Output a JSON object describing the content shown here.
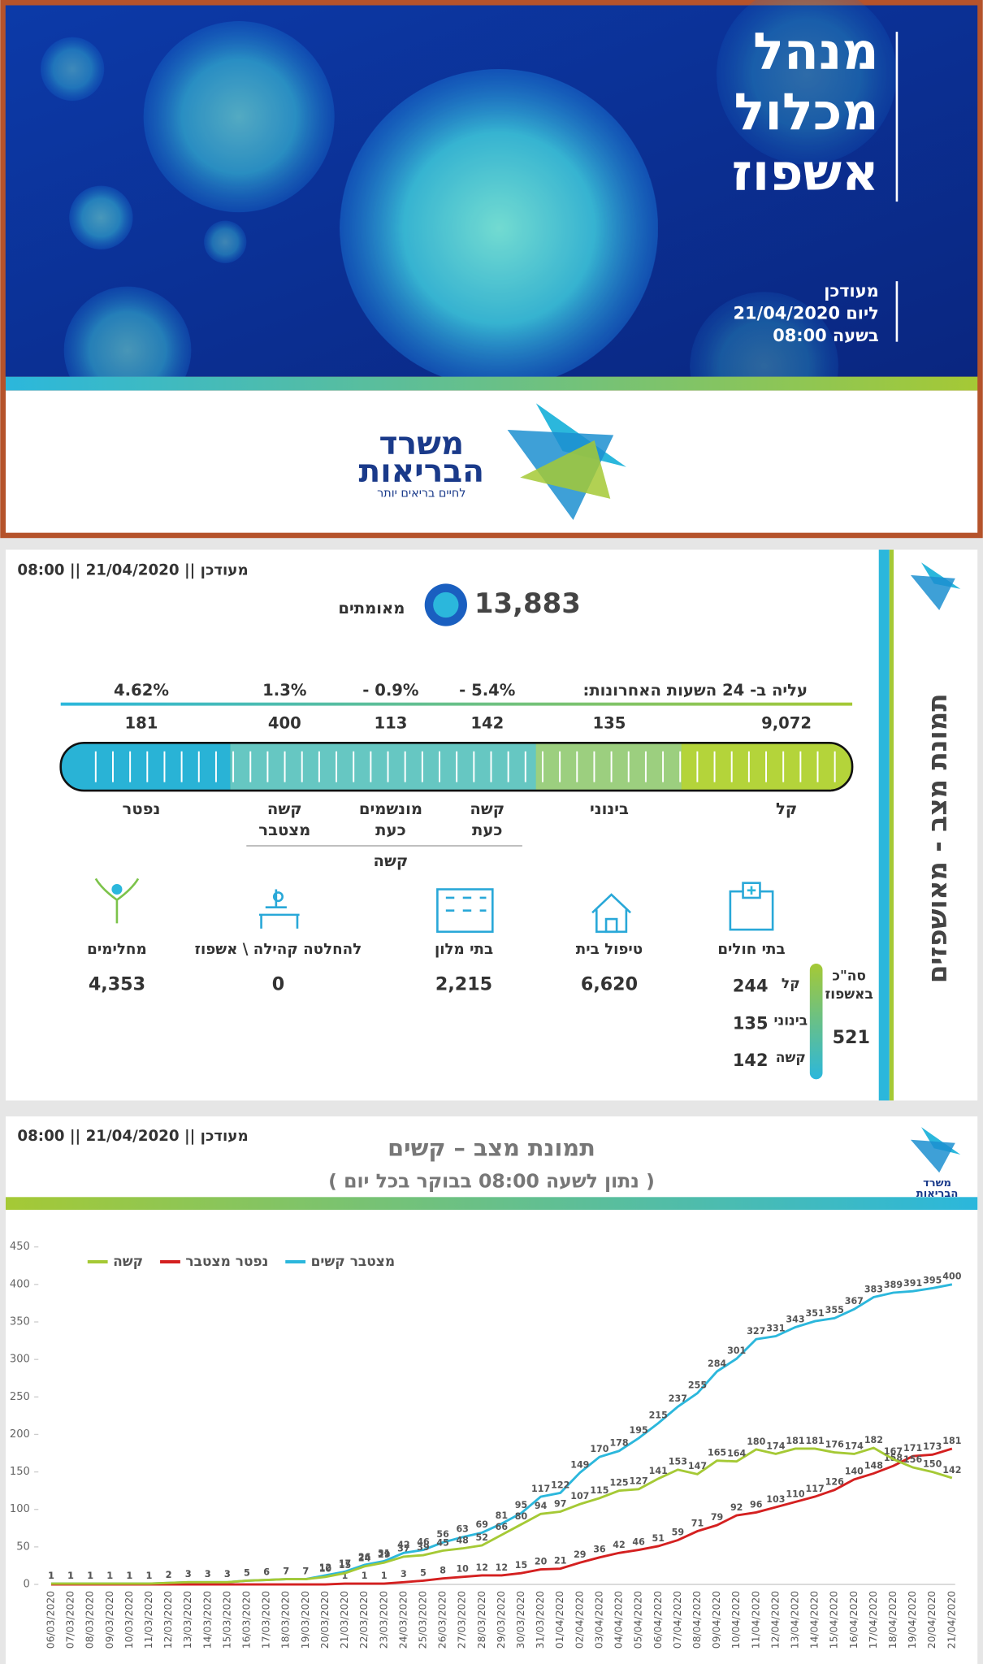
{
  "cover": {
    "title_lines": [
      "מנהל",
      "מכלול",
      "אשפוז"
    ],
    "updated_lines": [
      "מעודכן",
      "ליום 21/04/2020",
      "בשעה 08:00"
    ],
    "ministry_lines": [
      "משרד",
      "הבריאות"
    ],
    "tagline": "לחיים בריאים יותר"
  },
  "status": {
    "updated": "מעודכן || 21/04/2020 || 08:00",
    "side_title": "תמונת מצב - מאושפזים",
    "confirmed": "13,883",
    "confirmed_label": "מאומתים",
    "change_header": "עליה ב- 24 השעות האחרונות:",
    "levels": [
      {
        "label_lines": [
          "קל"
        ],
        "count": "9,072"
      },
      {
        "label_lines": [
          "בינוני"
        ],
        "count": "135"
      },
      {
        "label_lines": [
          "קשה",
          "כעת"
        ],
        "count": "142",
        "change": "- 5.4%"
      },
      {
        "label_lines": [
          "מונשמים",
          "כעת"
        ],
        "count": "113",
        "change": "- 0.9%"
      },
      {
        "label_lines": [
          "קשה",
          "מצטבר"
        ],
        "count": "400",
        "change": "1.3%"
      },
      {
        "label_lines": [
          "נפטר"
        ],
        "count": "181",
        "change": "4.62%"
      }
    ],
    "severe_group": "קשה",
    "facilities": [
      {
        "label": "בתי חולים"
      },
      {
        "label": "טיפול בית",
        "count": "6,620"
      },
      {
        "label": "בתי מלון",
        "count": "2,215"
      },
      {
        "label": "להחלטה קהילה \\ אשפוז",
        "count": "0"
      },
      {
        "label": "מחלימים",
        "count": "4,353"
      }
    ],
    "hospital_breakdown": [
      {
        "label": "קל",
        "count": "244"
      },
      {
        "label": "בינוני",
        "count": "135"
      },
      {
        "label": "קשה",
        "count": "142"
      }
    ],
    "hospital_total_lines": [
      "סה\"כ",
      "באשפוז"
    ],
    "hospital_total": "521"
  },
  "chart_panel": {
    "updated": "מעודכן || 21/04/2020 || 08:00"
  },
  "chart_data": {
    "type": "line",
    "title": "תמונת מצב – קשים",
    "subtitle": "( נתון לשעה 08:00 בבוקר בכל יום )",
    "categories": [
      "06/03/2020",
      "07/03/2020",
      "08/03/2020",
      "09/03/2020",
      "10/03/2020",
      "11/03/2020",
      "12/03/2020",
      "13/03/2020",
      "14/03/2020",
      "15/03/2020",
      "16/03/2020",
      "17/03/2020",
      "18/03/2020",
      "19/03/2020",
      "20/03/2020",
      "21/03/2020",
      "22/03/2020",
      "23/03/2020",
      "24/03/2020",
      "25/03/2020",
      "26/03/2020",
      "27/03/2020",
      "28/03/2020",
      "29/03/2020",
      "30/03/2020",
      "31/03/2020",
      "01/04/2020",
      "02/04/2020",
      "03/04/2020",
      "04/04/2020",
      "05/04/2020",
      "06/04/2020",
      "07/04/2020",
      "08/04/2020",
      "09/04/2020",
      "10/04/2020",
      "11/04/2020",
      "12/04/2020",
      "13/04/2020",
      "14/04/2020",
      "15/04/2020",
      "16/04/2020",
      "17/04/2020",
      "18/04/2020",
      "19/04/2020",
      "20/04/2020",
      "21/04/2020"
    ],
    "series": [
      {
        "name": "מצטבר קשים",
        "color": "#2bb7dc",
        "values": [
          1,
          1,
          1,
          1,
          1,
          1,
          2,
          3,
          3,
          3,
          5,
          6,
          7,
          7,
          12,
          17,
          26,
          31,
          42,
          46,
          56,
          63,
          69,
          81,
          95,
          117,
          122,
          149,
          170,
          178,
          195,
          215,
          237,
          255,
          284,
          301,
          327,
          331,
          343,
          351,
          355,
          367,
          383,
          389,
          391,
          395,
          400
        ]
      },
      {
        "name": "נפטר מצטבר",
        "color": "#d42020",
        "values": [
          0,
          0,
          0,
          0,
          0,
          0,
          0,
          0,
          0,
          0,
          0,
          0,
          0,
          0,
          0,
          1,
          1,
          1,
          3,
          5,
          8,
          10,
          12,
          12,
          15,
          20,
          21,
          29,
          36,
          42,
          46,
          51,
          59,
          71,
          79,
          92,
          96,
          103,
          110,
          117,
          126,
          140,
          148,
          158,
          171,
          173,
          181
        ]
      },
      {
        "name": "קשה",
        "color": "#a5c935",
        "values": [
          1,
          1,
          1,
          1,
          1,
          1,
          2,
          3,
          3,
          3,
          5,
          6,
          7,
          7,
          10,
          15,
          24,
          29,
          37,
          39,
          45,
          48,
          52,
          66,
          80,
          94,
          97,
          107,
          115,
          125,
          127,
          141,
          153,
          147,
          165,
          164,
          180,
          174,
          181,
          181,
          176,
          174,
          182,
          167,
          156,
          150,
          142
        ]
      }
    ],
    "ylim": [
      0,
      450
    ],
    "yticks": [
      0,
      50,
      100,
      150,
      200,
      250,
      300,
      350,
      400,
      450
    ],
    "legend": "top-left"
  }
}
